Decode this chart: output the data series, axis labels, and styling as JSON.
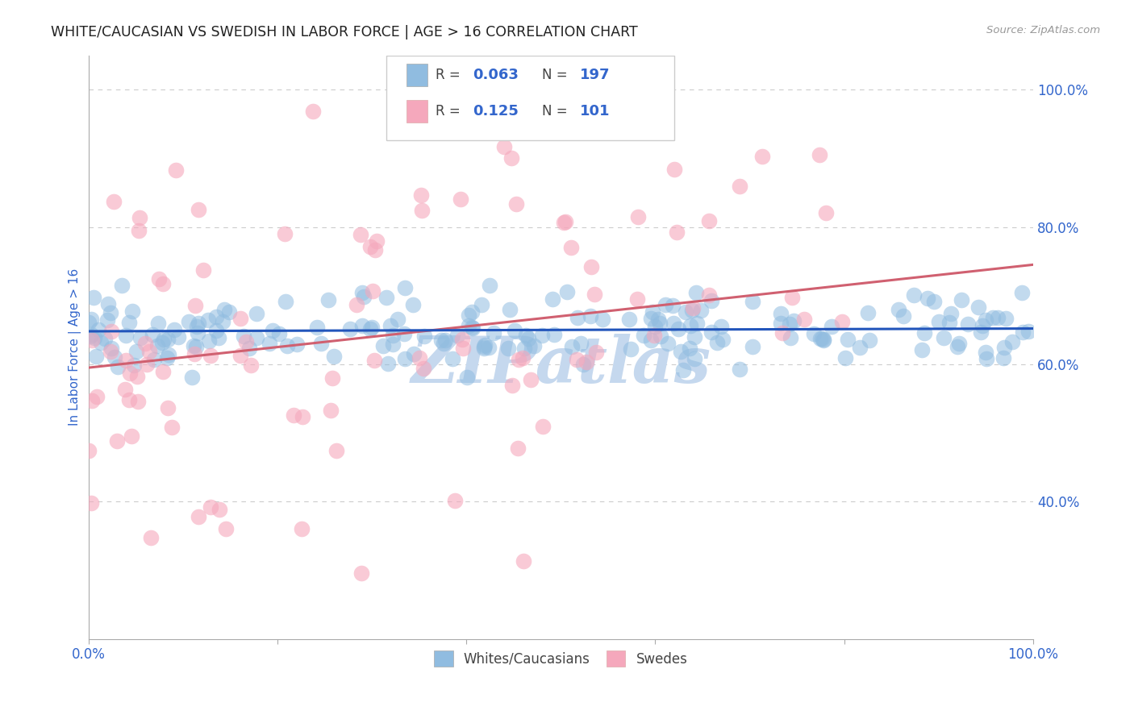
{
  "title": "WHITE/CAUCASIAN VS SWEDISH IN LABOR FORCE | AGE > 16 CORRELATION CHART",
  "source": "Source: ZipAtlas.com",
  "ylabel": "In Labor Force | Age > 16",
  "blue_R": 0.063,
  "blue_N": 197,
  "pink_R": 0.125,
  "pink_N": 101,
  "blue_color": "#90bce0",
  "pink_color": "#f5a8bc",
  "blue_line_color": "#2255bb",
  "pink_line_color": "#d06070",
  "axis_label_color": "#3366cc",
  "title_color": "#222222",
  "watermark": "ZIPatlas",
  "watermark_color": "#c5d8ee",
  "legend_label_blue": "Whites/Caucasians",
  "legend_label_pink": "Swedes",
  "xlim": [
    0.0,
    1.0
  ],
  "ylim": [
    0.2,
    1.05
  ],
  "y_tick_vals_right": [
    0.4,
    0.6,
    0.8,
    1.0
  ],
  "y_tick_labels_right": [
    "40.0%",
    "60.0%",
    "80.0%",
    "100.0%"
  ],
  "grid_color": "#cccccc",
  "background_color": "#ffffff",
  "blue_seed": 12,
  "pink_seed": 99,
  "blue_trend_start": 0.648,
  "blue_trend_end": 0.652,
  "pink_trend_start": 0.595,
  "pink_trend_end": 0.745
}
